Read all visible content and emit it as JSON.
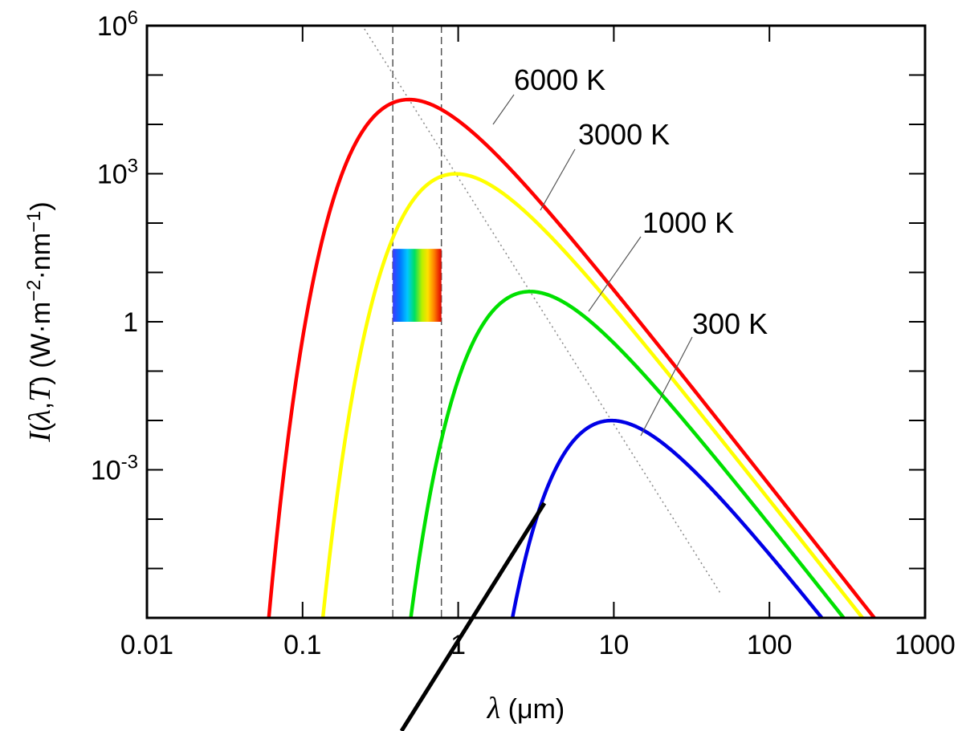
{
  "chart_data": {
    "type": "line",
    "x_scale": "log",
    "y_scale": "log",
    "xlim": [
      0.01,
      1000
    ],
    "ylim": [
      1e-06,
      1000000.0
    ],
    "xlabel": "λ (μm)",
    "ylabel": "I(λ,T) (W·m−2·nm−1)",
    "x_ticks": [
      {
        "value": 0.01,
        "label": "0.01"
      },
      {
        "value": 0.1,
        "label": "0.1"
      },
      {
        "value": 1,
        "label": "1"
      },
      {
        "value": 10,
        "label": "10"
      },
      {
        "value": 100,
        "label": "100"
      },
      {
        "value": 1000,
        "label": "1000"
      }
    ],
    "y_ticks": [
      {
        "value": 1000000.0,
        "base": "10",
        "exp": "6"
      },
      {
        "value": 1000.0,
        "base": "10",
        "exp": "3"
      },
      {
        "value": 1,
        "base": "1",
        "exp": ""
      },
      {
        "value": 0.001,
        "base": "10",
        "exp": "-3"
      }
    ],
    "series": [
      {
        "name": "6000 K",
        "temperature_K": 6000,
        "color": "#ff0000"
      },
      {
        "name": "3000 K",
        "temperature_K": 3000,
        "color": "#ffff00"
      },
      {
        "name": "1000 K",
        "temperature_K": 1000,
        "color": "#00e000"
      },
      {
        "name": "300 K",
        "temperature_K": 300,
        "color": "#0000e6"
      }
    ],
    "wien_peak_line": {
      "style": "dotted",
      "color": "#888888"
    },
    "visible_band": {
      "x_range": [
        0.38,
        0.78
      ],
      "style": "dashed",
      "color": "#555555"
    },
    "spectrum_bar": {
      "x_range": [
        0.38,
        0.78
      ],
      "y_range": [
        1,
        30
      ]
    },
    "grid": false
  }
}
